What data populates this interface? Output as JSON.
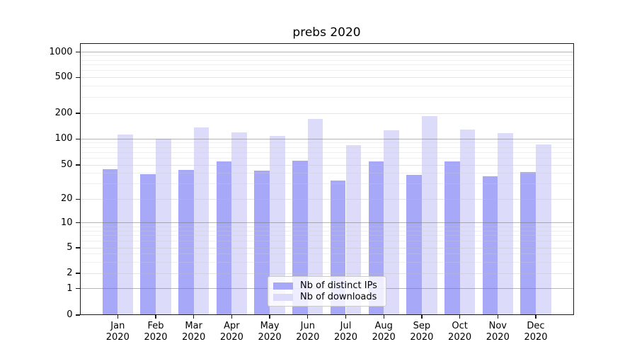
{
  "chart_data": {
    "type": "bar",
    "title": "prebs 2020",
    "categories": [
      "Jan 2020",
      "Feb 2020",
      "Mar 2020",
      "Apr 2020",
      "May 2020",
      "Jun 2020",
      "Jul 2020",
      "Aug 2020",
      "Sep 2020",
      "Oct 2020",
      "Nov 2020",
      "Dec 2020"
    ],
    "x_tick_line1": [
      "Jan",
      "Feb",
      "Mar",
      "Apr",
      "May",
      "Jun",
      "Jul",
      "Aug",
      "Sep",
      "Oct",
      "Nov",
      "Dec"
    ],
    "x_tick_line2": "2020",
    "series": [
      {
        "name": "Nb of distinct IPs",
        "color": "#a8a8f8",
        "values": [
          45,
          39,
          44,
          55,
          43,
          56,
          33,
          55,
          38,
          55,
          37,
          41
        ]
      },
      {
        "name": "Nb of downloads",
        "color": "#dcdcfa",
        "values": [
          113,
          100,
          136,
          119,
          109,
          171,
          85,
          127,
          185,
          128,
          117,
          87
        ]
      }
    ],
    "yticks": [
      0,
      1,
      2,
      5,
      10,
      20,
      50,
      100,
      200,
      500,
      1000
    ],
    "yscale": "logarithmic with zero baseline",
    "ylim": [
      0,
      1260
    ],
    "xlabel": "",
    "ylabel": "",
    "grid": "horizontal, log minor + major",
    "legend_position": "lower center"
  }
}
